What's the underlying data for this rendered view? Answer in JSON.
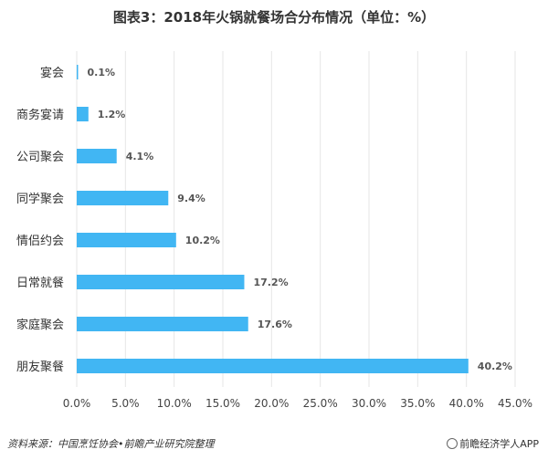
{
  "chart_data": {
    "type": "bar",
    "orientation": "horizontal",
    "title": "图表3：2018年火锅就餐场合分布情况（单位：%）",
    "categories": [
      "宴会",
      "商务宴请",
      "公司聚会",
      "同学聚会",
      "情侣约会",
      "日常就餐",
      "家庭聚会",
      "朋友聚餐"
    ],
    "values": [
      0.1,
      1.2,
      4.1,
      9.4,
      10.2,
      17.2,
      17.6,
      40.2
    ],
    "value_labels": [
      "0.1%",
      "1.2%",
      "4.1%",
      "9.4%",
      "10.2%",
      "17.2%",
      "17.6%",
      "40.2%"
    ],
    "xlim": [
      0,
      45
    ],
    "xticks": [
      "0.0%",
      "5.0%",
      "10.0%",
      "15.0%",
      "20.0%",
      "25.0%",
      "30.0%",
      "35.0%",
      "40.0%",
      "45.0%"
    ],
    "grid": true,
    "bar_color": "#41b6f3",
    "grid_color": "#e6e6e6"
  },
  "footer": {
    "source": "资料来源：中国烹饪协会•前瞻产业研究院整理",
    "brand": "前瞻经济学人APP"
  }
}
